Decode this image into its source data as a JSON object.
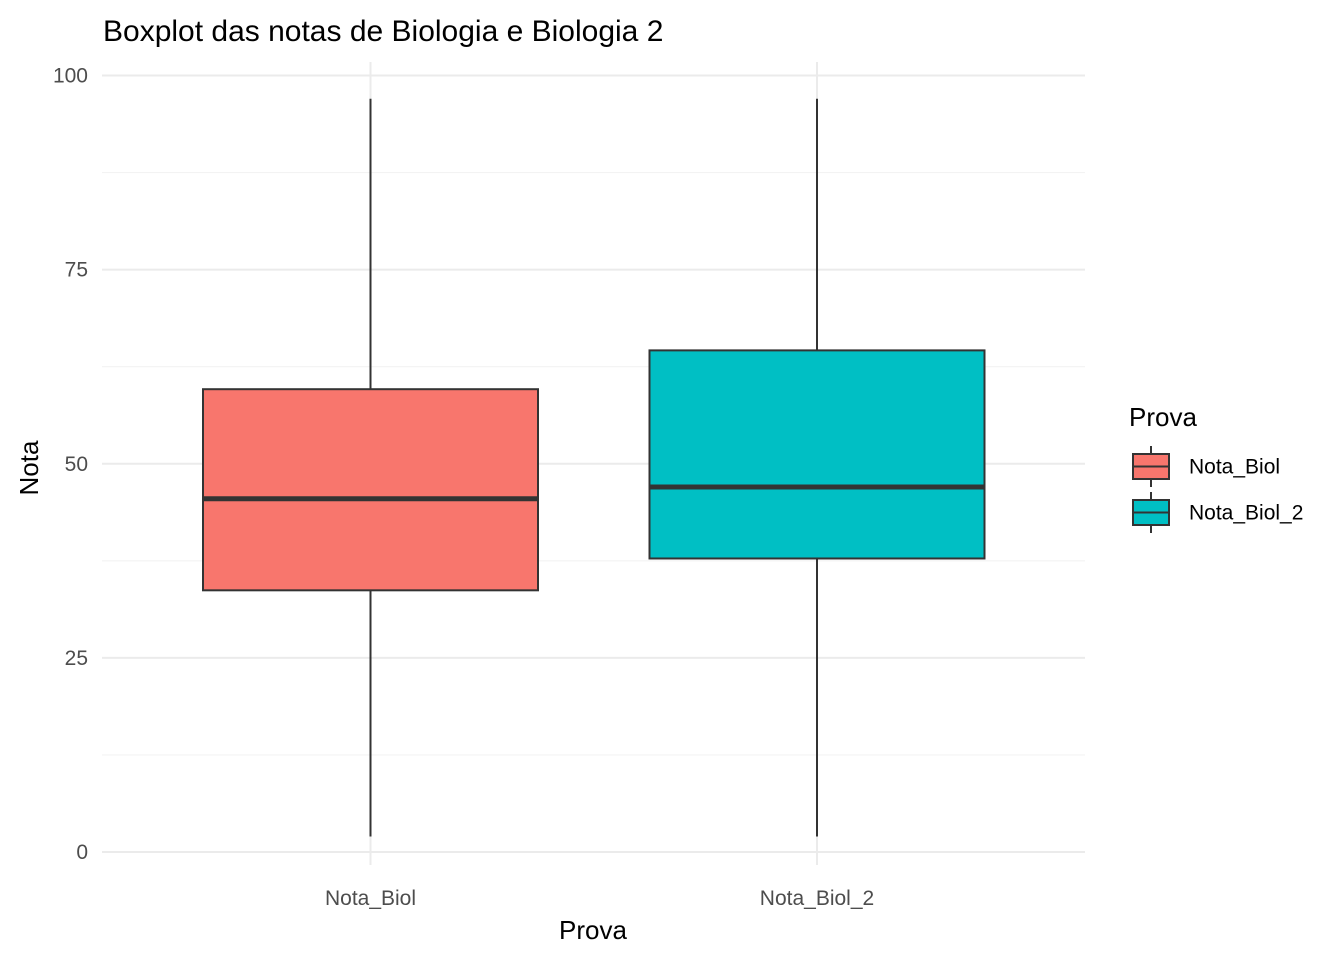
{
  "chart_data": {
    "type": "boxplot",
    "title": "Boxplot das notas de Biologia e Biologia 2",
    "xlabel": "Prova",
    "ylabel": "Nota",
    "ylim": [
      0,
      100
    ],
    "yticks": [
      0,
      25,
      50,
      75,
      100
    ],
    "yticks_labels": [
      "0",
      "25",
      "50",
      "75",
      "100"
    ],
    "categories": [
      "Nota_Biol",
      "Nota_Biol_2"
    ],
    "boxes": [
      {
        "category": "Nota_Biol",
        "min": 2,
        "q1": 33.7,
        "median": 45.5,
        "q3": 59.6,
        "max": 97,
        "color": "#F8766D"
      },
      {
        "category": "Nota_Biol_2",
        "min": 2,
        "q1": 37.8,
        "median": 47,
        "q3": 64.6,
        "max": 97,
        "color": "#00BFC4"
      }
    ],
    "legend": {
      "title": "Prova",
      "position": "right",
      "items": [
        {
          "label": "Nota_Biol",
          "color": "#F8766D"
        },
        {
          "label": "Nota_Biol_2",
          "color": "#00BFC4"
        }
      ]
    },
    "grid": true
  }
}
